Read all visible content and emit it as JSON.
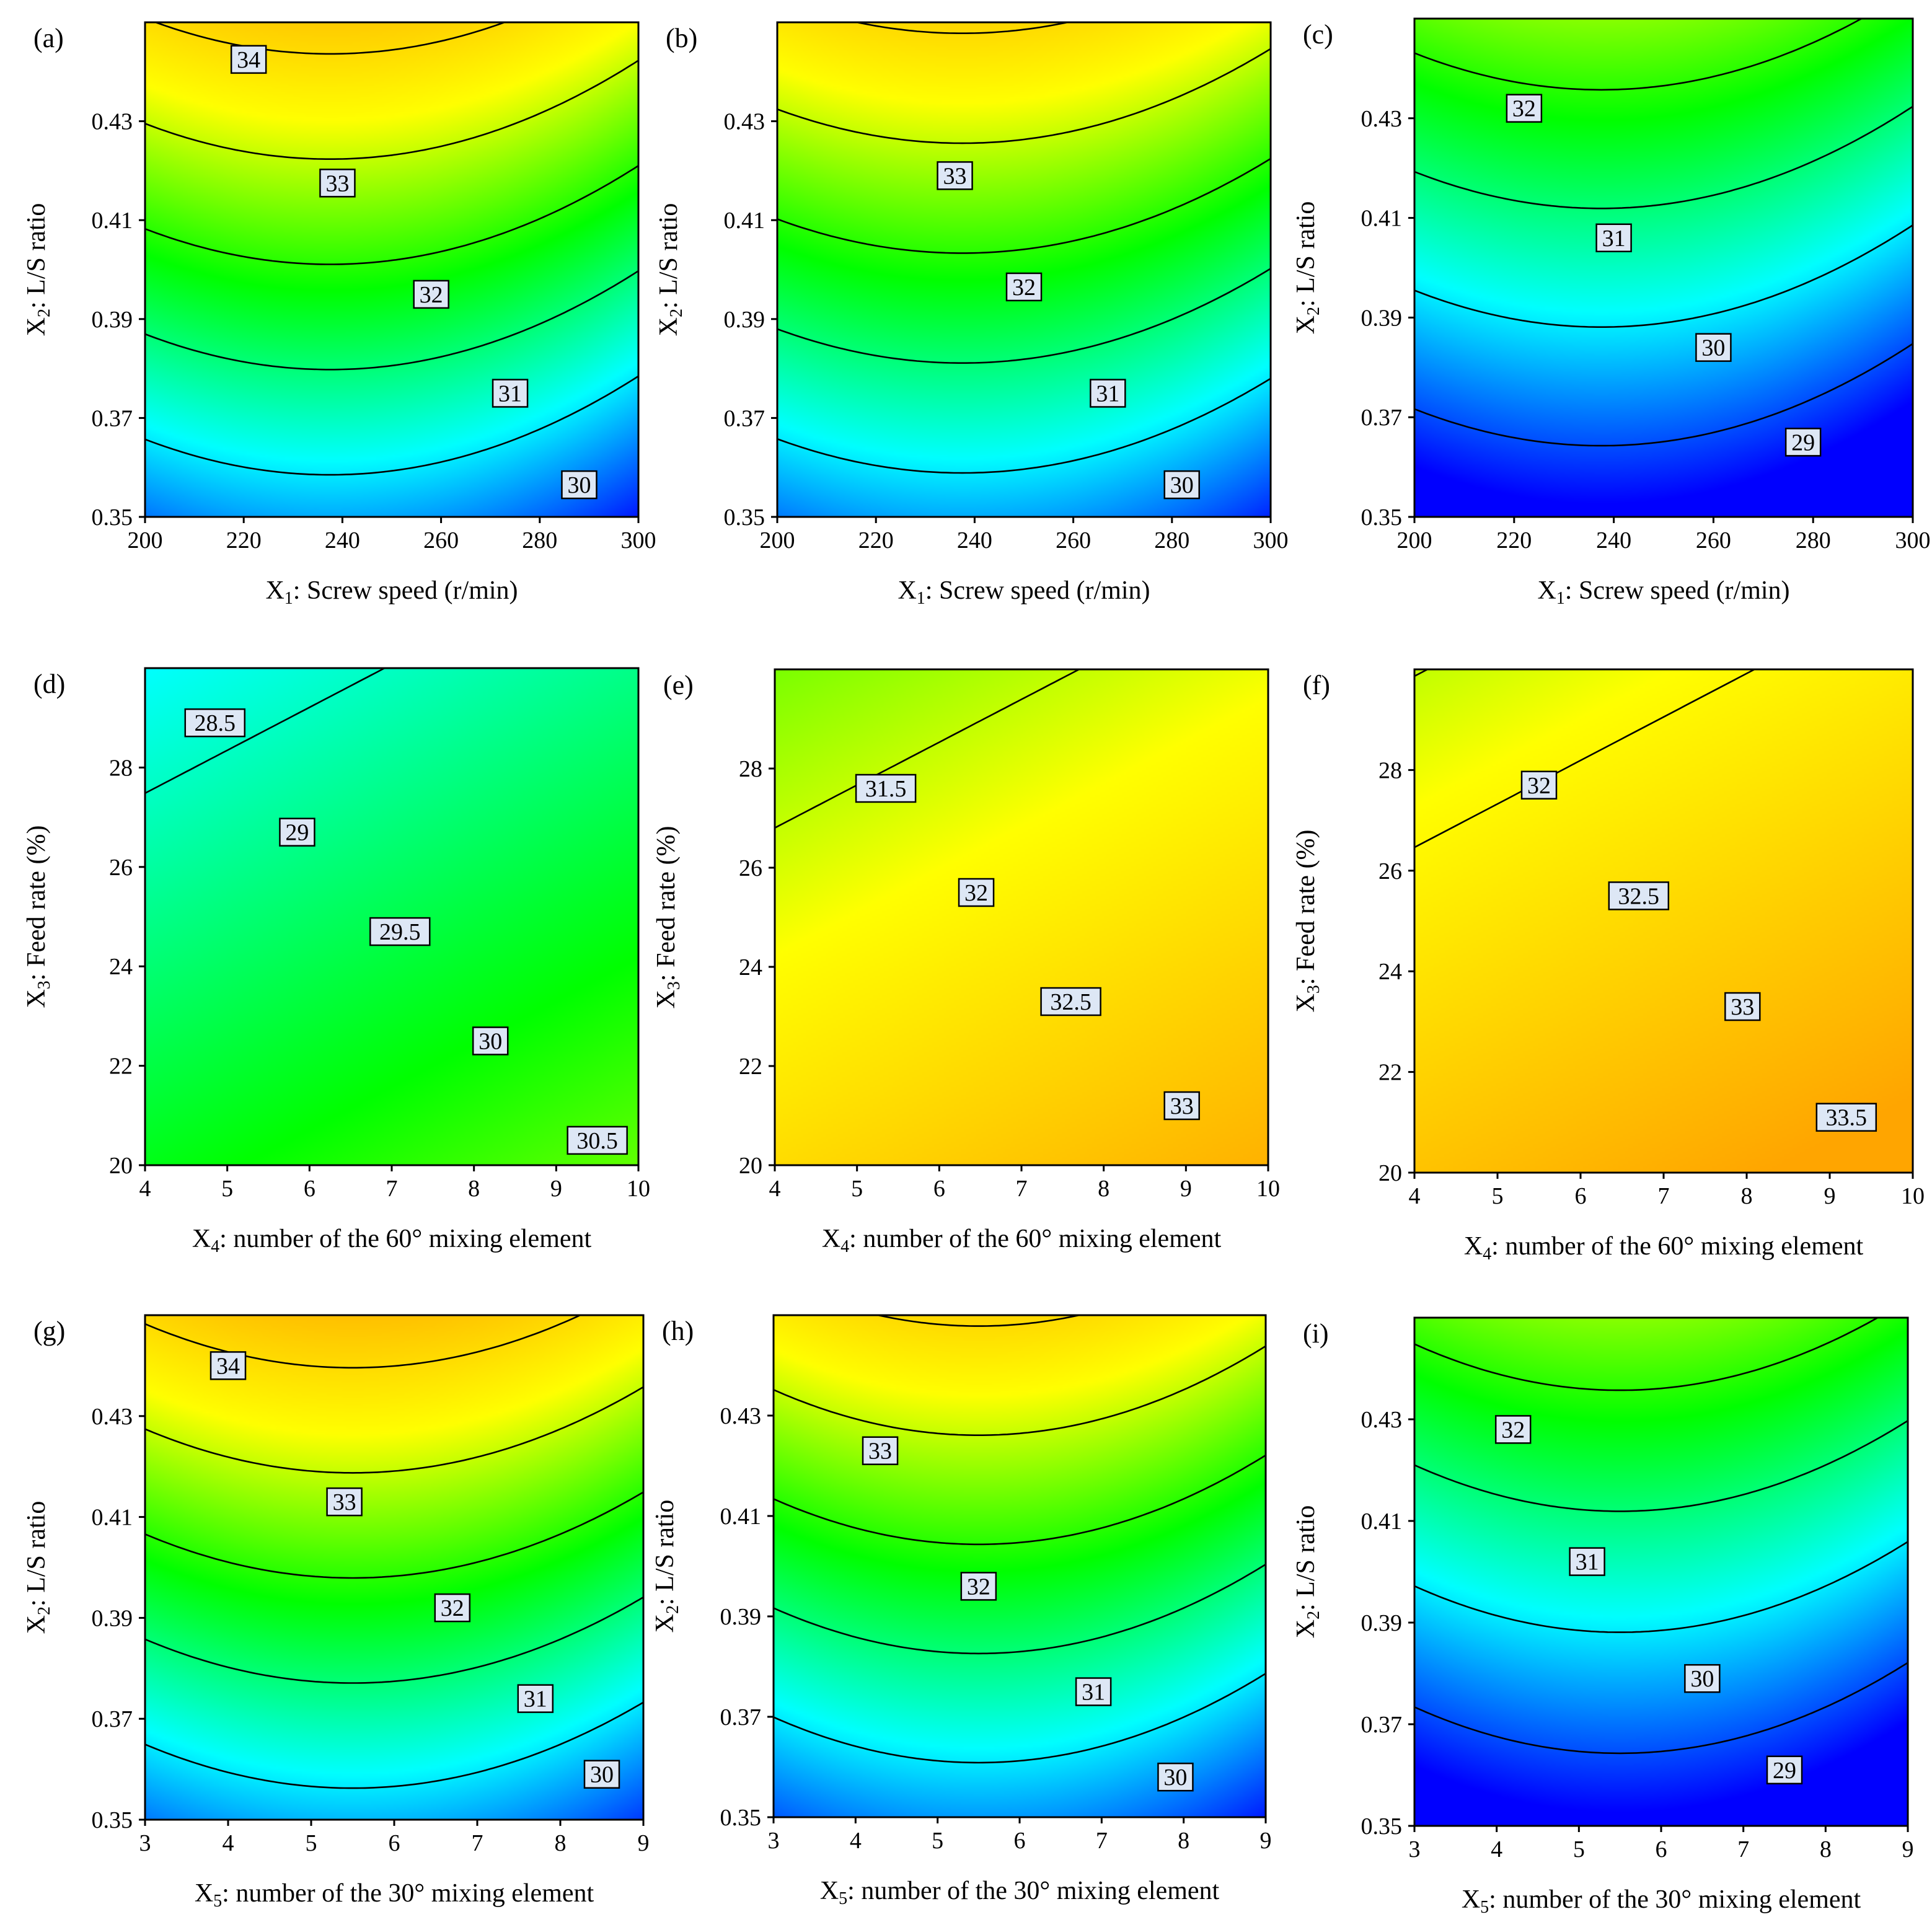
{
  "figure": {
    "panels_caption": "Contour plots a–i",
    "colormap": [
      "#0000ff",
      "#00ffff",
      "#00ff00",
      "#ffff00",
      "#ffa500"
    ]
  },
  "chart_data": [
    {
      "id": "a",
      "type": "contour",
      "panel_label": "(a)",
      "xlabel_prefix": "X",
      "xlabel_sub": "1",
      "xlabel_text": ": Screw speed (r/min)",
      "ylabel_prefix": "X",
      "ylabel_sub": "2",
      "ylabel_text": ": L/S ratio",
      "xlim": [
        200,
        300
      ],
      "ylim": [
        0.35,
        0.45
      ],
      "xticks": [
        "200",
        "220",
        "240",
        "260",
        "280",
        "300"
      ],
      "yticks": [
        "0.35",
        "0.37",
        "0.39",
        "0.41",
        "0.43"
      ],
      "shape": "parabolic",
      "vertex_x": 237.5,
      "top_value": 34.3,
      "bottom_value": 29.6,
      "curvature": 0.6,
      "zmin": 28.5,
      "zmax": 35,
      "contour_levels": [
        {
          "value": "34",
          "label_pos": [
            221,
            0.4425
          ]
        },
        {
          "value": "33",
          "label_pos": [
            239,
            0.4175
          ]
        },
        {
          "value": "32",
          "label_pos": [
            258,
            0.395
          ]
        },
        {
          "value": "31",
          "label_pos": [
            274,
            0.375
          ]
        },
        {
          "value": "30",
          "label_pos": [
            288,
            0.3565
          ]
        }
      ]
    },
    {
      "id": "b",
      "type": "contour",
      "panel_label": "(b)",
      "xlabel_prefix": "X",
      "xlabel_sub": "1",
      "xlabel_text": ": Screw speed (r/min)",
      "ylabel_prefix": "X",
      "ylabel_sub": "2",
      "ylabel_text": ": L/S ratio",
      "xlim": [
        200,
        300
      ],
      "ylim": [
        0.35,
        0.45
      ],
      "xticks": [
        "200",
        "220",
        "240",
        "260",
        "280",
        "300"
      ],
      "yticks": [
        "0.35",
        "0.37",
        "0.39",
        "0.41",
        "0.43"
      ],
      "shape": "parabolic",
      "vertex_x": 237.5,
      "top_value": 34.1,
      "bottom_value": 29.6,
      "curvature": 0.55,
      "zmin": 28.5,
      "zmax": 35,
      "contour_levels": [
        {
          "value": "34",
          "label_pos": null
        },
        {
          "value": "33",
          "label_pos": [
            236,
            0.419
          ]
        },
        {
          "value": "32",
          "label_pos": [
            250,
            0.3965
          ]
        },
        {
          "value": "31",
          "label_pos": [
            267,
            0.375
          ]
        },
        {
          "value": "30",
          "label_pos": [
            282,
            0.3565
          ]
        }
      ]
    },
    {
      "id": "c",
      "type": "contour",
      "panel_label": "(c)",
      "xlabel_prefix": "X",
      "xlabel_sub": "1",
      "xlabel_text": ": Screw speed (r/min)",
      "ylabel_prefix": "X",
      "ylabel_sub": "2",
      "ylabel_text": ": L/S ratio",
      "xlim": [
        200,
        300
      ],
      "ylim": [
        0.35,
        0.45
      ],
      "xticks": [
        "200",
        "220",
        "240",
        "260",
        "280",
        "300"
      ],
      "yticks": [
        "0.35",
        "0.37",
        "0.39",
        "0.41",
        "0.43"
      ],
      "shape": "parabolic",
      "vertex_x": 237.5,
      "top_value": 32.6,
      "bottom_value": 28.4,
      "curvature": 0.55,
      "zmin": 28.5,
      "zmax": 35,
      "contour_levels": [
        {
          "value": "32",
          "label_pos": [
            222,
            0.432
          ]
        },
        {
          "value": "31",
          "label_pos": [
            240,
            0.406
          ]
        },
        {
          "value": "30",
          "label_pos": [
            260,
            0.384
          ]
        },
        {
          "value": "29",
          "label_pos": [
            278,
            0.365
          ]
        }
      ]
    },
    {
      "id": "d",
      "type": "contour",
      "panel_label": "(d)",
      "xlabel_prefix": "X",
      "xlabel_sub": "4",
      "xlabel_text": ": number of the 60° mixing element",
      "ylabel_prefix": "X",
      "ylabel_sub": "3",
      "ylabel_text": ": Feed rate (%)",
      "xlim": [
        4,
        10
      ],
      "ylim": [
        20,
        30
      ],
      "xticks": [
        "4",
        "5",
        "6",
        "7",
        "8",
        "9",
        "10"
      ],
      "yticks": [
        "20",
        "22",
        "24",
        "26",
        "28"
      ],
      "shape": "linear",
      "base": 31.6,
      "gx": 0.127,
      "gy": -0.147,
      "zmin": 28.5,
      "zmax": 35,
      "contour_levels": [
        {
          "value": "28.5",
          "label_pos": [
            4.85,
            28.9
          ]
        },
        {
          "value": "29",
          "label_pos": [
            5.85,
            26.7
          ]
        },
        {
          "value": "29.5",
          "label_pos": [
            7.1,
            24.7
          ]
        },
        {
          "value": "30",
          "label_pos": [
            8.2,
            22.5
          ]
        },
        {
          "value": "30.5",
          "label_pos": [
            9.5,
            20.5
          ]
        }
      ]
    },
    {
      "id": "e",
      "type": "contour",
      "panel_label": "(e)",
      "xlabel_prefix": "X",
      "xlabel_sub": "4",
      "xlabel_text": ": number of the 60° mixing element",
      "ylabel_prefix": "X",
      "ylabel_sub": "3",
      "ylabel_text": ": Feed rate (%)",
      "xlim": [
        4,
        10
      ],
      "ylim": [
        20,
        30
      ],
      "xticks": [
        "4",
        "5",
        "6",
        "7",
        "8",
        "9",
        "10"
      ],
      "yticks": [
        "20",
        "22",
        "24",
        "26",
        "28"
      ],
      "shape": "linear",
      "base": 34.0,
      "gx": 0.127,
      "gy": -0.147,
      "zmin": 28.5,
      "zmax": 35,
      "contour_levels": [
        {
          "value": "31.5",
          "label_pos": [
            5.35,
            27.6
          ]
        },
        {
          "value": "32",
          "label_pos": [
            6.45,
            25.5
          ]
        },
        {
          "value": "32.5",
          "label_pos": [
            7.6,
            23.3
          ]
        },
        {
          "value": "33",
          "label_pos": [
            8.95,
            21.2
          ]
        }
      ]
    },
    {
      "id": "f",
      "type": "contour",
      "panel_label": "(f)",
      "xlabel_prefix": "X",
      "xlabel_sub": "4",
      "xlabel_text": ": number of the 60° mixing element",
      "ylabel_prefix": "X",
      "ylabel_sub": "3",
      "ylabel_text": ": Feed rate (%)",
      "xlim": [
        4,
        10
      ],
      "ylim": [
        20,
        30
      ],
      "xticks": [
        "4",
        "5",
        "6",
        "7",
        "8",
        "9",
        "10"
      ],
      "yticks": [
        "20",
        "22",
        "24",
        "26",
        "28"
      ],
      "shape": "linear",
      "base": 34.45,
      "gx": 0.127,
      "gy": -0.147,
      "zmin": 28.5,
      "zmax": 35,
      "contour_levels": [
        {
          "value": "32",
          "label_pos": [
            5.5,
            27.7
          ]
        },
        {
          "value": "32.5",
          "label_pos": [
            6.7,
            25.5
          ]
        },
        {
          "value": "33",
          "label_pos": [
            7.95,
            23.3
          ]
        },
        {
          "value": "33.5",
          "label_pos": [
            9.2,
            21.1
          ]
        }
      ]
    },
    {
      "id": "g",
      "type": "contour",
      "panel_label": "(g)",
      "xlabel_prefix": "X",
      "xlabel_sub": "5",
      "xlabel_text": ": number of the 30° mixing element",
      "ylabel_prefix": "X",
      "ylabel_sub": "2",
      "ylabel_text": ": L/S ratio",
      "xlim": [
        3,
        9
      ],
      "ylim": [
        0.35,
        0.45
      ],
      "xticks": [
        "3",
        "4",
        "5",
        "6",
        "7",
        "8",
        "9"
      ],
      "yticks": [
        "0.35",
        "0.37",
        "0.39",
        "0.41",
        "0.43"
      ],
      "shape": "parabolic",
      "vertex_x": 5.5,
      "top_value": 34.5,
      "bottom_value": 29.7,
      "curvature": 0.6,
      "zmin": 28.5,
      "zmax": 35,
      "contour_levels": [
        {
          "value": "34",
          "label_pos": [
            4.0,
            0.44
          ]
        },
        {
          "value": "33",
          "label_pos": [
            5.4,
            0.413
          ]
        },
        {
          "value": "32",
          "label_pos": [
            6.7,
            0.392
          ]
        },
        {
          "value": "31",
          "label_pos": [
            7.7,
            0.374
          ]
        },
        {
          "value": "30",
          "label_pos": [
            8.5,
            0.359
          ]
        }
      ]
    },
    {
      "id": "h",
      "type": "contour",
      "panel_label": "(h)",
      "xlabel_prefix": "X",
      "xlabel_sub": "5",
      "xlabel_text": ": number of the 30° mixing element",
      "ylabel_prefix": "X",
      "ylabel_sub": "2",
      "ylabel_text": ": L/S ratio",
      "xlim": [
        3,
        9
      ],
      "ylim": [
        0.35,
        0.45
      ],
      "xticks": [
        "3",
        "4",
        "5",
        "6",
        "7",
        "8",
        "9"
      ],
      "yticks": [
        "0.35",
        "0.37",
        "0.39",
        "0.41",
        "0.43"
      ],
      "shape": "parabolic",
      "vertex_x": 5.5,
      "top_value": 34.1,
      "bottom_value": 29.5,
      "curvature": 0.6,
      "zmin": 28.5,
      "zmax": 35,
      "contour_levels": [
        {
          "value": "34",
          "label_pos": null
        },
        {
          "value": "33",
          "label_pos": [
            4.3,
            0.423
          ]
        },
        {
          "value": "32",
          "label_pos": [
            5.5,
            0.396
          ]
        },
        {
          "value": "31",
          "label_pos": [
            6.9,
            0.375
          ]
        },
        {
          "value": "30",
          "label_pos": [
            7.9,
            0.358
          ]
        }
      ]
    },
    {
      "id": "i",
      "type": "contour",
      "panel_label": "(i)",
      "xlabel_prefix": "X",
      "xlabel_sub": "5",
      "xlabel_text": ": number of the 30° mixing element",
      "ylabel_prefix": "X",
      "ylabel_sub": "2",
      "ylabel_text": ": L/S ratio",
      "xlim": [
        3,
        9
      ],
      "ylim": [
        0.35,
        0.45
      ],
      "xticks": [
        "3",
        "4",
        "5",
        "6",
        "7",
        "8",
        "9"
      ],
      "yticks": [
        "0.35",
        "0.37",
        "0.39",
        "0.41",
        "0.43"
      ],
      "shape": "parabolic",
      "vertex_x": 5.5,
      "top_value": 32.6,
      "bottom_value": 28.4,
      "curvature": 0.55,
      "zmin": 28.5,
      "zmax": 35,
      "contour_levels": [
        {
          "value": "32",
          "label_pos": [
            4.2,
            0.428
          ]
        },
        {
          "value": "31",
          "label_pos": [
            5.1,
            0.402
          ]
        },
        {
          "value": "30",
          "label_pos": [
            6.5,
            0.379
          ]
        },
        {
          "value": "29",
          "label_pos": [
            7.5,
            0.361
          ]
        }
      ]
    }
  ]
}
